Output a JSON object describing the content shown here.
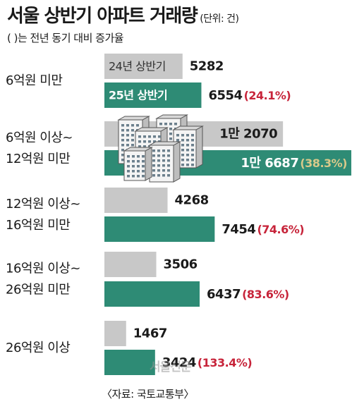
{
  "header": {
    "title": "서울 상반기 아파트 거래량",
    "unit": "(단위: 건)",
    "note": "( )는 전년 동기 대비 증가율"
  },
  "source": "〈자료: 국토교통부〉",
  "watermark": "서울신문",
  "colors": {
    "prev": "#c8c8c8",
    "curr": "#2e8b75",
    "pct": "#c7243a",
    "pct_inside": "#d9c98a",
    "text": "#1a1a1a"
  },
  "chart_data": {
    "type": "bar",
    "orientation": "horizontal",
    "categories": [
      [
        "6억원 미만"
      ],
      [
        "6억원 이상~",
        "12억원 미만"
      ],
      [
        "12억원 이상~",
        "16억원 미만"
      ],
      [
        "16억원 이상~",
        "26억원 미만"
      ],
      [
        "26억원 이상"
      ]
    ],
    "series": [
      {
        "name": "24년 상반기",
        "values": [
          5282,
          12070,
          4268,
          3506,
          1467
        ],
        "labels": [
          "5282",
          "1만 2070",
          "4268",
          "3506",
          "1467"
        ]
      },
      {
        "name": "25년 상반기",
        "values": [
          6554,
          16687,
          7454,
          6437,
          3424
        ],
        "labels": [
          "6554",
          "1만 6687",
          "7454",
          "6437",
          "3424"
        ],
        "growth": [
          "(24.1%)",
          "(38.3%)",
          "(74.6%)",
          "(83.6%)",
          "(133.4%)"
        ]
      }
    ]
  }
}
